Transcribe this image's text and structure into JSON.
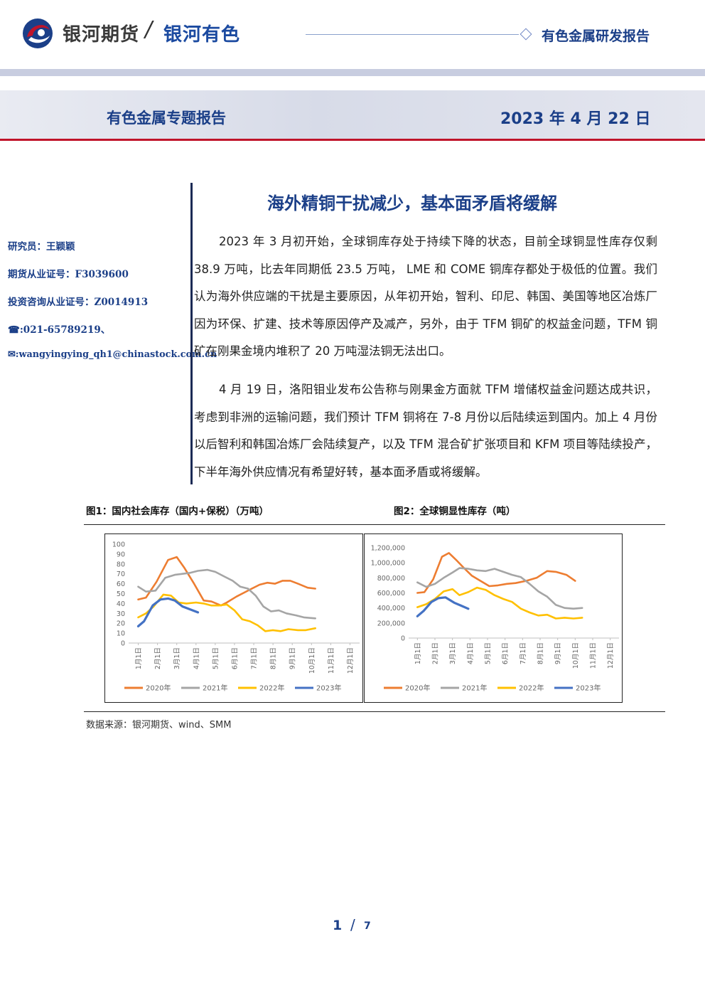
{
  "header": {
    "brand_name": "银河期货",
    "slash": "/",
    "brand_sub": "银河有色",
    "report_type": "有色金属研发报告"
  },
  "banner": {
    "title": "有色金属专题报告",
    "date": "2023 年 4 月 22 日"
  },
  "sidebar": {
    "items": [
      "研究员：王颖颖",
      "期货从业证号：F3039600",
      "投资咨询从业证号：Z0014913",
      "☎:021-65789219、",
      "✉:wangyingying_qh1@chinastock.com.cn"
    ]
  },
  "article": {
    "title": "海外精铜干扰减少，基本面矛盾将缓解",
    "paragraphs": [
      "2023 年 3 月初开始，全球铜库存处于持续下降的状态，目前全球铜显性库存仅剩 38.9 万吨，比去年同期低 23.5 万吨， LME 和 COME 铜库存都处于极低的位置。我们认为海外供应端的干扰是主要原因，从年初开始，智利、印尼、韩国、美国等地区冶炼厂因为环保、扩建、技术等原因停产及减产，另外，由于 TFM 铜矿的权益金问题，TFM 铜矿在刚果金境内堆积了 20 万吨湿法铜无法出口。",
      "4 月 19 日，洛阳钼业发布公告称与刚果金方面就 TFM 增储权益金问题达成共识，考虑到非洲的运输问题，我们预计 TFM 铜将在 7-8 月份以后陆续运到国内。加上 4 月份以后智利和韩国冶炼厂会陆续复产，以及 TFM 混合矿扩张项目和 KFM 项目等陆续投产，下半年海外供应情况有希望好转，基本面矛盾或将缓解。"
    ]
  },
  "figures": {
    "fig1_title": "图1：国内社会库存（国内+保税）（万吨）",
    "fig2_title": "图2：全球铜显性库存（吨）",
    "source": "数据来源：银河期货、wind、SMM"
  },
  "footer": {
    "page": "1",
    "slash": "/",
    "total": "7"
  },
  "colors": {
    "brand_blue": "#1b3f88",
    "accent_red": "#c0142a",
    "series_2020": "#ED7D31",
    "series_2021": "#A5A5A5",
    "series_2022": "#FFC000",
    "series_2023": "#4472C4"
  },
  "chart_data": [
    {
      "type": "line",
      "title": "图1：国内社会库存（国内+保税）（万吨）",
      "categories": [
        "1月1日",
        "2月1日",
        "3月1日",
        "4月1日",
        "5月1日",
        "6月1日",
        "7月1日",
        "8月1日",
        "9月1日",
        "10月1日",
        "11月1日",
        "12月1日"
      ],
      "ylim": [
        0,
        100
      ],
      "yticks": [
        "0",
        "10",
        "20",
        "30",
        "40",
        "50",
        "60",
        "70",
        "80",
        "90",
        "100"
      ],
      "grid": false,
      "legend": "bottom",
      "series": [
        {
          "name": "2020年",
          "color": "#ED7D31",
          "values": [
            44,
            46,
            62,
            84,
            87,
            76,
            60,
            43,
            42,
            38,
            41,
            47,
            51,
            55,
            59,
            61,
            60,
            63,
            63,
            60,
            56,
            55
          ],
          "x": [
            0,
            0.4,
            0.95,
            1.55,
            2.0,
            2.4,
            2.9,
            3.4,
            3.8,
            4.3,
            4.6,
            5.1,
            5.5,
            5.9,
            6.3,
            6.7,
            7.1,
            7.5,
            7.9,
            8.3,
            8.8,
            9.2
          ]
        },
        {
          "name": "2021年",
          "color": "#A5A5A5",
          "values": [
            57,
            52,
            53,
            66,
            69,
            70,
            71,
            73,
            74,
            72,
            67,
            63,
            57,
            55,
            48,
            37,
            32,
            33,
            30,
            28,
            26,
            25
          ],
          "x": [
            0,
            0.4,
            0.9,
            1.4,
            1.9,
            2.3,
            2.7,
            3.1,
            3.6,
            4.0,
            4.5,
            4.9,
            5.3,
            5.7,
            6.1,
            6.5,
            6.9,
            7.3,
            7.7,
            8.2,
            8.6,
            9.2
          ]
        },
        {
          "name": "2022年",
          "color": "#FFC000",
          "values": [
            26,
            30,
            37,
            49,
            48,
            41,
            40,
            41,
            40,
            38,
            38,
            39,
            33,
            24,
            22,
            18,
            12,
            13,
            12,
            14,
            13,
            13,
            15
          ],
          "x": [
            0,
            0.4,
            0.8,
            1.3,
            1.7,
            2.1,
            2.5,
            3.0,
            3.4,
            3.8,
            4.2,
            4.6,
            5.0,
            5.4,
            5.8,
            6.2,
            6.6,
            7.0,
            7.4,
            7.8,
            8.3,
            8.7,
            9.2
          ]
        },
        {
          "name": "2023年",
          "color": "#4472C4",
          "values": [
            17,
            22,
            38,
            44,
            45,
            43,
            37,
            34,
            31
          ],
          "x": [
            0,
            0.3,
            0.75,
            1.15,
            1.55,
            1.9,
            2.3,
            2.7,
            3.1
          ]
        }
      ]
    },
    {
      "type": "line",
      "title": "图2：全球铜显性库存（吨）",
      "categories": [
        "1月1日",
        "2月1日",
        "3月1日",
        "4月1日",
        "5月1日",
        "6月1日",
        "7月1日",
        "8月1日",
        "9月1日",
        "10月1日",
        "11月1日",
        "12月1日"
      ],
      "ylim": [
        0,
        1200000
      ],
      "yticks": [
        "0",
        "200,000",
        "400,000",
        "600,000",
        "800,000",
        "1,000,000",
        "1,200,000"
      ],
      "grid": false,
      "legend": "bottom",
      "series": [
        {
          "name": "2020年",
          "color": "#ED7D31",
          "values": [
            600000,
            610000,
            780000,
            1080000,
            1130000,
            1040000,
            920000,
            830000,
            760000,
            690000,
            700000,
            720000,
            730000,
            760000,
            800000,
            890000,
            880000,
            840000,
            760000
          ],
          "x": [
            0,
            0.4,
            0.9,
            1.4,
            1.8,
            2.2,
            2.7,
            3.1,
            3.6,
            4.1,
            4.6,
            5.1,
            5.6,
            6.2,
            6.8,
            7.4,
            7.9,
            8.5,
            9.0
          ]
        },
        {
          "name": "2021年",
          "color": "#A5A5A5",
          "values": [
            740000,
            680000,
            720000,
            800000,
            870000,
            930000,
            920000,
            900000,
            890000,
            920000,
            880000,
            840000,
            810000,
            720000,
            620000,
            550000,
            440000,
            400000,
            390000,
            400000
          ],
          "x": [
            0,
            0.5,
            1.0,
            1.5,
            2.0,
            2.4,
            2.9,
            3.4,
            3.9,
            4.4,
            4.9,
            5.4,
            5.9,
            6.4,
            6.9,
            7.4,
            7.9,
            8.4,
            8.9,
            9.4
          ]
        },
        {
          "name": "2022年",
          "color": "#FFC000",
          "values": [
            410000,
            450000,
            520000,
            620000,
            650000,
            570000,
            610000,
            670000,
            640000,
            570000,
            520000,
            480000,
            390000,
            340000,
            300000,
            310000,
            260000,
            270000,
            260000,
            270000
          ],
          "x": [
            0,
            0.5,
            1.0,
            1.5,
            2.0,
            2.4,
            2.9,
            3.4,
            3.9,
            4.4,
            4.9,
            5.4,
            5.9,
            6.4,
            6.9,
            7.4,
            7.9,
            8.4,
            8.9,
            9.4
          ]
        },
        {
          "name": "2023年",
          "color": "#4472C4",
          "values": [
            290000,
            360000,
            480000,
            530000,
            540000,
            470000,
            430000,
            389000
          ],
          "x": [
            0,
            0.35,
            0.8,
            1.2,
            1.6,
            2.1,
            2.5,
            2.9
          ]
        }
      ]
    }
  ]
}
